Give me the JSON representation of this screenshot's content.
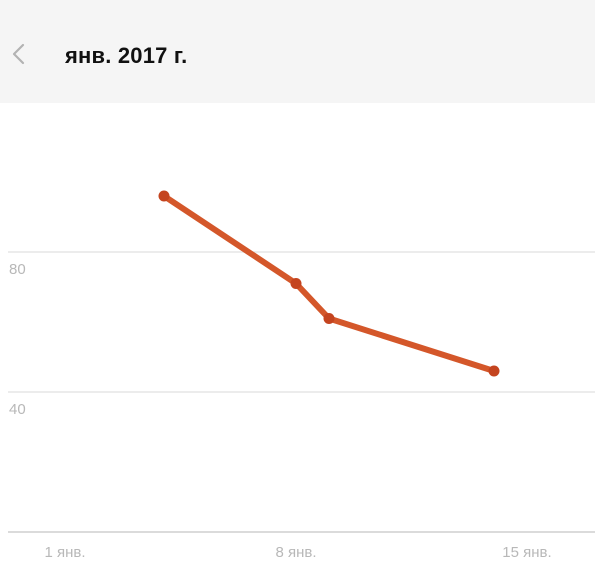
{
  "header": {
    "title": "янв. 2017 г.",
    "back_icon": "chevron-left-icon"
  },
  "chart_data": {
    "type": "line",
    "title": "",
    "xlabel": "",
    "ylabel": "",
    "x_tick_labels": [
      "1 янв.",
      "8 янв.",
      "15 янв."
    ],
    "y_tick_labels": [
      "80",
      "40"
    ],
    "y_ticks": [
      80,
      40
    ],
    "ylim": [
      0,
      120
    ],
    "series": [
      {
        "points": [
          {
            "x": "2017-01-04",
            "y": 96
          },
          {
            "x": "2017-01-08",
            "y": 71
          },
          {
            "x": "2017-01-09",
            "y": 61
          },
          {
            "x": "2017-01-14",
            "y": 46
          }
        ],
        "color": "#d4572a"
      }
    ],
    "grid": true,
    "gridline_color": "#e6e6e6",
    "axis_color": "#cfcfcf",
    "tick_label_color": "#b8b8b8"
  }
}
